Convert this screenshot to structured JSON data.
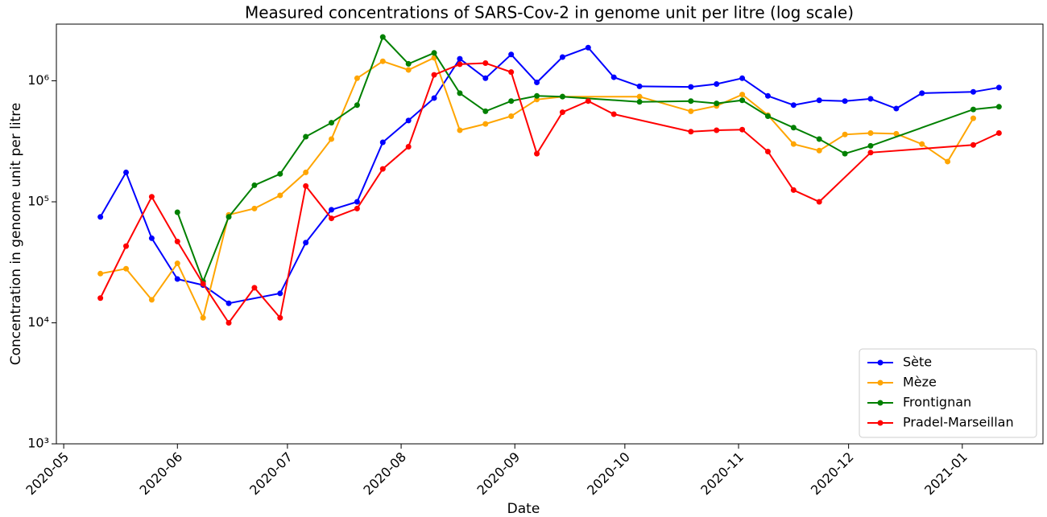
{
  "chart_data": {
    "type": "line",
    "title": "Measured concentrations of SARS-Cov-2 in genome unit per litre (log scale)",
    "x_label": "Date",
    "y_label": "Concentration in genome unit per litre",
    "y_scale": "log",
    "legend": "lower right",
    "grid": false,
    "xlim": [
      "2020-04-29",
      "2021-01-23"
    ],
    "xticks": [
      {
        "value": "2020-05-01",
        "label": "2020-05"
      },
      {
        "value": "2020-06-01",
        "label": "2020-06"
      },
      {
        "value": "2020-07-01",
        "label": "2020-07"
      },
      {
        "value": "2020-08-01",
        "label": "2020-08"
      },
      {
        "value": "2020-09-01",
        "label": "2020-09"
      },
      {
        "value": "2020-10-01",
        "label": "2020-10"
      },
      {
        "value": "2020-11-01",
        "label": "2020-11"
      },
      {
        "value": "2020-12-01",
        "label": "2020-12"
      },
      {
        "value": "2021-01-01",
        "label": "2021-01"
      }
    ],
    "ylim": [
      1000,
      2940000
    ],
    "yticks": [
      {
        "value": 1000,
        "label": "10³"
      },
      {
        "value": 10000,
        "label": "10⁴"
      },
      {
        "value": 100000,
        "label": "10⁵"
      },
      {
        "value": 1000000,
        "label": "10⁶"
      }
    ],
    "series": [
      {
        "name": "Sète",
        "color": "#0000ff",
        "x": [
          "2020-05-11",
          "2020-05-18",
          "2020-05-25",
          "2020-06-01",
          "2020-06-08",
          "2020-06-15",
          "2020-06-29",
          "2020-07-06",
          "2020-07-13",
          "2020-07-20",
          "2020-07-27",
          "2020-08-03",
          "2020-08-10",
          "2020-08-17",
          "2020-08-24",
          "2020-08-31",
          "2020-09-07",
          "2020-09-14",
          "2020-09-21",
          "2020-09-28",
          "2020-10-05",
          "2020-10-19",
          "2020-10-26",
          "2020-11-02",
          "2020-11-09",
          "2020-11-16",
          "2020-11-23",
          "2020-11-30",
          "2020-12-07",
          "2020-12-14",
          "2020-12-21",
          "2021-01-04",
          "2021-01-11"
        ],
        "values": [
          75000,
          175000,
          50000,
          23000,
          20500,
          14500,
          17500,
          46000,
          86000,
          100000,
          310000,
          470000,
          720000,
          1520000,
          1050000,
          1650000,
          970000,
          1570000,
          1880000,
          1070000,
          900000,
          890000,
          940000,
          1050000,
          750000,
          630000,
          690000,
          680000,
          710000,
          590000,
          790000,
          810000,
          880000
        ]
      },
      {
        "name": "Mèze",
        "color": "#ffa500",
        "x": [
          "2020-05-11",
          "2020-05-18",
          "2020-05-25",
          "2020-06-01",
          "2020-06-08",
          "2020-06-15",
          "2020-06-22",
          "2020-06-29",
          "2020-07-06",
          "2020-07-13",
          "2020-07-20",
          "2020-07-27",
          "2020-08-03",
          "2020-08-10",
          "2020-08-17",
          "2020-08-24",
          "2020-08-31",
          "2020-09-07",
          "2020-09-14",
          "2020-10-05",
          "2020-10-19",
          "2020-10-26",
          "2020-11-02",
          "2020-11-09",
          "2020-11-16",
          "2020-11-23",
          "2020-11-30",
          "2020-12-07",
          "2020-12-14",
          "2020-12-21",
          "2020-12-28",
          "2021-01-04"
        ],
        "values": [
          25500,
          28000,
          15500,
          31000,
          11000,
          78000,
          88000,
          113000,
          175000,
          330000,
          1050000,
          1450000,
          1230000,
          1550000,
          390000,
          440000,
          510000,
          700000,
          740000,
          740000,
          560000,
          620000,
          770000,
          520000,
          300000,
          265000,
          360000,
          370000,
          365000,
          300000,
          215000,
          490000
        ]
      },
      {
        "name": "Frontignan",
        "color": "#008000",
        "x": [
          "2020-06-01",
          "2020-06-08",
          "2020-06-15",
          "2020-06-22",
          "2020-06-29",
          "2020-07-06",
          "2020-07-13",
          "2020-07-20",
          "2020-07-27",
          "2020-08-03",
          "2020-08-10",
          "2020-08-17",
          "2020-08-24",
          "2020-08-31",
          "2020-09-07",
          "2020-09-14",
          "2020-10-05",
          "2020-10-19",
          "2020-10-26",
          "2020-11-02",
          "2020-11-09",
          "2020-11-16",
          "2020-11-23",
          "2020-11-30",
          "2020-12-07",
          "2021-01-04",
          "2021-01-11"
        ],
        "values": [
          82000,
          22000,
          75000,
          137000,
          170000,
          345000,
          450000,
          630000,
          2300000,
          1380000,
          1700000,
          790000,
          560000,
          680000,
          750000,
          740000,
          670000,
          680000,
          650000,
          690000,
          510000,
          410000,
          330000,
          250000,
          290000,
          580000,
          610000
        ]
      },
      {
        "name": "Pradel-Marseillan",
        "color": "#ff0000",
        "x": [
          "2020-05-11",
          "2020-05-18",
          "2020-05-25",
          "2020-06-01",
          "2020-06-08",
          "2020-06-15",
          "2020-06-22",
          "2020-06-29",
          "2020-07-06",
          "2020-07-13",
          "2020-07-20",
          "2020-07-27",
          "2020-08-03",
          "2020-08-10",
          "2020-08-17",
          "2020-08-24",
          "2020-08-31",
          "2020-09-07",
          "2020-09-14",
          "2020-09-21",
          "2020-09-28",
          "2020-10-19",
          "2020-10-26",
          "2020-11-02",
          "2020-11-09",
          "2020-11-16",
          "2020-11-23",
          "2020-12-07",
          "2021-01-04",
          "2021-01-11"
        ],
        "values": [
          16000,
          43000,
          110000,
          47000,
          21000,
          10000,
          19500,
          11000,
          135000,
          73000,
          88000,
          187000,
          285000,
          1120000,
          1370000,
          1400000,
          1180000,
          250000,
          550000,
          680000,
          530000,
          380000,
          390000,
          395000,
          260000,
          125000,
          100000,
          255000,
          295000,
          370000
        ]
      }
    ]
  }
}
